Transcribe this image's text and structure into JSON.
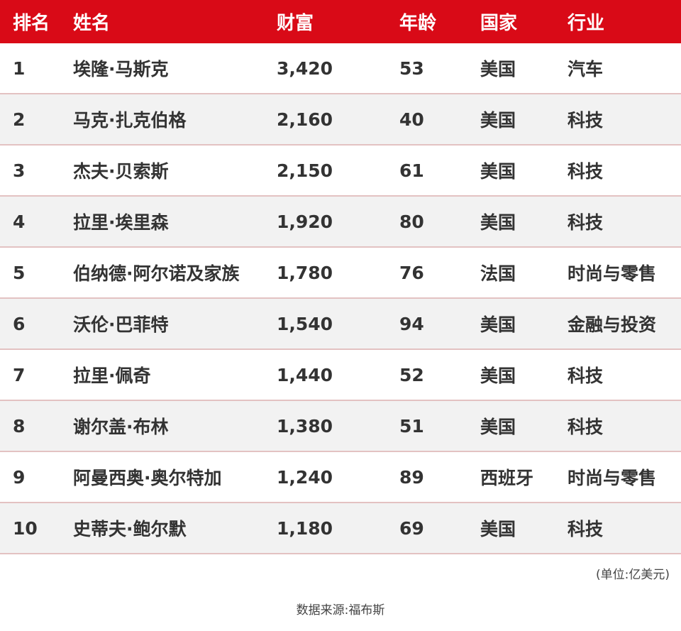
{
  "headers": [
    "排名",
    "姓名",
    "财富",
    "年龄",
    "国家",
    "行业"
  ],
  "rows": [
    [
      "1",
      "埃隆·马斯克",
      "3,420",
      "53",
      "美国",
      "汽车"
    ],
    [
      "2",
      "马克·扎克伯格",
      "2,160",
      "40",
      "美国",
      "科技"
    ],
    [
      "3",
      "杰夫·贝索斯",
      "2,150",
      "61",
      "美国",
      "科技"
    ],
    [
      "4",
      "拉里·埃里森",
      "1,920",
      "80",
      "美国",
      "科技"
    ],
    [
      "5",
      "伯纳德·阿尔诺及家族",
      "1,780",
      "76",
      "法国",
      "时尚与零售"
    ],
    [
      "6",
      "沃伦·巴菲特",
      "1,540",
      "94",
      "美国",
      "金融与投资"
    ],
    [
      "7",
      "拉里·佩奇",
      "1,440",
      "52",
      "美国",
      "科技"
    ],
    [
      "8",
      "谢尔盖·布林",
      "1,380",
      "51",
      "美国",
      "科技"
    ],
    [
      "9",
      "阿曼西奥·奥尔特加",
      "1,240",
      "89",
      "西班牙",
      "时尚与零售"
    ],
    [
      "10",
      "史蒂夫·鲍尔默",
      "1,180",
      "69",
      "美国",
      "科技"
    ]
  ],
  "unit": "(单位:亿美元)",
  "source": "数据来源:福布斯",
  "colors": {
    "header": "#d90a17",
    "stripe": "#f2f2f2",
    "border": "#e3c2c2"
  }
}
